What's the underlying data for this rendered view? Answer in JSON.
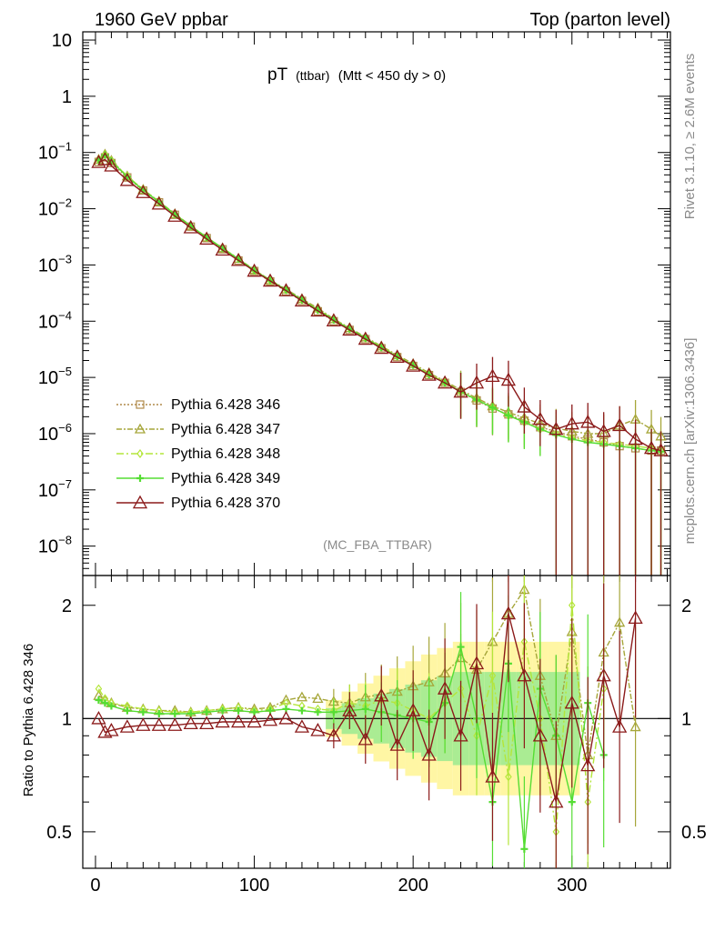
{
  "header": {
    "left": "1960 GeV ppbar",
    "right": "Top (parton level)"
  },
  "side_labels": {
    "top": "Rivet 3.1.10, ≥ 2.6M events",
    "bottom": "mcplots.cern.ch [arXiv:1306.3436]"
  },
  "chart_data": [
    {
      "type": "line",
      "panel": "main",
      "title": "pT (ttbar) (Mtt < 450 dy > 0)",
      "title_main": "pT",
      "title_sub": "(ttbar)",
      "title_rest": "(Mtt < 450 dy > 0)",
      "watermark": "(MC_FBA_TTBAR)",
      "y_scale": "log",
      "xlim": [
        -8,
        362
      ],
      "ylim": [
        3e-09,
        14
      ],
      "ytick_labels": [
        {
          "value": 10,
          "base": "10",
          "exp": ""
        },
        {
          "value": 1,
          "base": "1",
          "exp": ""
        },
        {
          "value": 0.1,
          "base": "10",
          "exp": "−1"
        },
        {
          "value": 0.01,
          "base": "10",
          "exp": "−2"
        },
        {
          "value": 0.001,
          "base": "10",
          "exp": "−3"
        },
        {
          "value": 0.0001,
          "base": "10",
          "exp": "−4"
        },
        {
          "value": 1e-05,
          "base": "10",
          "exp": "−5"
        },
        {
          "value": 1e-06,
          "base": "10",
          "exp": "−6"
        },
        {
          "value": 1e-07,
          "base": "10",
          "exp": "−7"
        },
        {
          "value": 1e-08,
          "base": "10",
          "exp": "−8"
        }
      ],
      "legend_position": "lower-left",
      "series": [
        {
          "name": "Pythia 6.428 346",
          "color": "#b08a4a",
          "marker": "square",
          "dash": "2,2",
          "x": [
            2,
            6,
            10,
            20,
            30,
            40,
            50,
            60,
            70,
            80,
            90,
            100,
            110,
            120,
            130,
            140,
            150,
            160,
            170,
            180,
            190,
            200,
            210,
            220,
            230,
            240,
            250,
            260,
            270,
            280,
            290,
            300,
            310,
            320,
            330,
            340,
            350,
            356
          ],
          "y": [
            0.068,
            0.082,
            0.065,
            0.036,
            0.021,
            0.013,
            0.0078,
            0.0048,
            0.003,
            0.0019,
            0.0012,
            0.00078,
            0.00051,
            0.00034,
            0.00023,
            0.00015,
            0.0001,
            7e-05,
            4.8e-05,
            3.3e-05,
            2.3e-05,
            1.6e-05,
            1.1e-05,
            8e-06,
            5.5e-06,
            3.9e-06,
            2.8e-06,
            2.2e-06,
            1.7e-06,
            1.3e-06,
            1.1e-06,
            9e-07,
            8e-07,
            7e-07,
            6e-07,
            5.5e-07,
            5e-07,
            5e-07
          ]
        },
        {
          "name": "Pythia 6.428 347",
          "color": "#a6a63a",
          "marker": "triangle",
          "dash": "6,2,2,2",
          "x": [
            2,
            6,
            10,
            20,
            30,
            40,
            50,
            60,
            70,
            80,
            90,
            100,
            110,
            120,
            130,
            140,
            150,
            160,
            170,
            180,
            190,
            200,
            210,
            220,
            230,
            240,
            250,
            260,
            270,
            280,
            290,
            300,
            310,
            320,
            330,
            340,
            350,
            356
          ],
          "y": [
            0.075,
            0.093,
            0.072,
            0.038,
            0.022,
            0.0135,
            0.0081,
            0.005,
            0.0031,
            0.002,
            0.0013,
            0.00082,
            0.00054,
            0.00037,
            0.00025,
            0.00017,
            0.00011,
            7.6e-05,
            5.2e-05,
            3.6e-05,
            2.5e-05,
            1.75e-05,
            1.2e-05,
            8.6e-06,
            6e-06,
            4.3e-06,
            3.1e-06,
            2.4e-06,
            1.9e-06,
            1.5e-06,
            1.25e-06,
            1.1e-06,
            1e-06,
            1e-06,
            1.4e-06,
            1.8e-06,
            1.2e-06,
            9e-07
          ]
        },
        {
          "name": "Pythia 6.428 348",
          "color": "#b4e63a",
          "marker": "diamond",
          "dash": "8,3,2,3",
          "x": [
            2,
            6,
            10,
            20,
            30,
            40,
            50,
            60,
            70,
            80,
            90,
            100,
            110,
            120,
            130,
            140,
            150,
            160,
            170,
            180,
            190,
            200,
            210,
            220,
            230,
            240,
            250,
            260,
            270,
            280,
            290,
            300,
            310,
            320,
            330,
            340,
            350,
            356
          ],
          "y": [
            0.074,
            0.091,
            0.071,
            0.038,
            0.022,
            0.0134,
            0.008,
            0.0049,
            0.0031,
            0.002,
            0.0013,
            0.0008,
            0.00053,
            0.00036,
            0.00024,
            0.00016,
            0.000108,
            7.4e-05,
            5e-05,
            3.5e-05,
            2.4e-05,
            1.7e-05,
            1.15e-05,
            8.2e-06,
            5.6e-06,
            4e-06,
            2.9e-06,
            2.1e-06,
            1.6e-06,
            1.2e-06,
            1e-06,
            8.5e-07,
            7.5e-07,
            7e-07,
            6.5e-07,
            6e-07,
            5.5e-07,
            5e-07
          ]
        },
        {
          "name": "Pythia 6.428 349",
          "color": "#55dd33",
          "marker": "cross",
          "dash": "",
          "x": [
            2,
            6,
            10,
            20,
            30,
            40,
            50,
            60,
            70,
            80,
            90,
            100,
            110,
            120,
            130,
            140,
            150,
            160,
            170,
            180,
            190,
            200,
            210,
            220,
            230,
            240,
            250,
            260,
            270,
            280,
            290,
            300,
            310,
            320,
            330,
            340,
            350,
            356
          ],
          "y": [
            0.073,
            0.09,
            0.07,
            0.037,
            0.0215,
            0.0132,
            0.0079,
            0.0049,
            0.0031,
            0.00198,
            0.00128,
            0.0008,
            0.00053,
            0.00036,
            0.00024,
            0.000158,
            0.000106,
            7.3e-05,
            5e-05,
            3.4e-05,
            2.35e-05,
            1.65e-05,
            1.12e-05,
            8e-06,
            5.6e-06,
            4e-06,
            2.9e-06,
            2.1e-06,
            1.6e-06,
            1.2e-06,
            9.5e-07,
            8e-07,
            7e-07,
            6.5e-07,
            6e-07,
            5.5e-07,
            5e-07,
            4.8e-07
          ]
        },
        {
          "name": "Pythia 6.428 370",
          "color": "#8b1a1a",
          "marker": "triangle-large",
          "dash": "",
          "x": [
            2,
            6,
            10,
            20,
            30,
            40,
            50,
            60,
            70,
            80,
            90,
            100,
            110,
            120,
            130,
            140,
            150,
            160,
            170,
            180,
            190,
            200,
            210,
            220,
            230,
            240,
            250,
            260,
            270,
            280,
            290,
            300,
            310,
            320,
            330,
            340,
            350,
            356
          ],
          "y": [
            0.067,
            0.075,
            0.058,
            0.032,
            0.0195,
            0.0122,
            0.0074,
            0.0046,
            0.0029,
            0.00185,
            0.00121,
            0.00078,
            0.00052,
            0.00035,
            0.00023,
            0.000153,
            0.000102,
            7e-05,
            4.8e-05,
            3.3e-05,
            2.3e-05,
            1.6e-05,
            1.1e-05,
            8e-06,
            5.5e-06,
            8e-06,
            1.05e-05,
            9e-06,
            3e-06,
            1.8e-06,
            1.2e-06,
            1.5e-06,
            1.6e-06,
            1.1e-06,
            1.4e-06,
            8e-07,
            5.5e-07,
            5e-07
          ]
        }
      ]
    },
    {
      "type": "line",
      "panel": "ratio",
      "ylabel": "Ratio to Pythia 6.428 346",
      "y_scale": "log",
      "xlim": [
        -8,
        362
      ],
      "ylim": [
        0.4,
        2.4
      ],
      "xtick_labels": [
        "0",
        "100",
        "200",
        "300"
      ],
      "xtick_values": [
        0,
        100,
        200,
        300
      ],
      "ytick_labels": [
        "2",
        "1",
        "0.5"
      ],
      "ytick_values": [
        2,
        1,
        0.5
      ],
      "reference_line": 1,
      "series": [
        {
          "name": "Pythia 6.428 346",
          "color": "#b08a4a",
          "x": [
            2,
            6,
            10,
            20,
            30,
            40,
            50,
            60,
            70,
            80,
            90,
            100,
            110,
            120,
            130,
            140,
            150,
            160,
            170,
            180,
            190,
            200,
            210,
            220,
            230,
            240,
            250,
            260,
            270,
            280,
            290,
            300
          ],
          "y": [
            1,
            1,
            1,
            1,
            1,
            1,
            1,
            1,
            1,
            1,
            1,
            1,
            1,
            1,
            1,
            1,
            1,
            1,
            1,
            1,
            1,
            1,
            1,
            1,
            1,
            1,
            1,
            1,
            1,
            1,
            1,
            1
          ]
        },
        {
          "name": "Pythia 6.428 347",
          "color": "#a6a63a",
          "x": [
            2,
            6,
            10,
            20,
            30,
            40,
            50,
            60,
            70,
            80,
            90,
            100,
            110,
            120,
            130,
            140,
            150,
            160,
            170,
            180,
            190,
            200,
            210,
            220,
            230,
            240,
            250,
            260,
            270,
            280,
            290,
            300,
            310,
            320,
            330,
            340
          ],
          "y": [
            1.15,
            1.12,
            1.1,
            1.07,
            1.06,
            1.05,
            1.05,
            1.04,
            1.05,
            1.06,
            1.07,
            1.06,
            1.07,
            1.12,
            1.14,
            1.13,
            1.11,
            1.1,
            1.14,
            1.16,
            1.18,
            1.22,
            1.25,
            1.32,
            1.45,
            1.35,
            1.6,
            1.9,
            2.2,
            1.3,
            0.9,
            1.7,
            0.8,
            1.5,
            1.8,
            0.95
          ]
        },
        {
          "name": "Pythia 6.428 348",
          "color": "#b4e63a",
          "x": [
            2,
            6,
            10,
            20,
            30,
            40,
            50,
            60,
            70,
            80,
            90,
            100,
            110,
            120,
            130,
            140,
            150,
            160,
            170,
            180,
            190,
            200,
            210,
            220,
            230,
            240,
            250,
            260,
            270,
            280,
            290,
            300,
            310,
            320
          ],
          "y": [
            1.2,
            1.13,
            1.1,
            1.08,
            1.06,
            1.05,
            1.04,
            1.04,
            1.05,
            1.06,
            1.07,
            1.05,
            1.06,
            1.1,
            1.08,
            1.06,
            1.05,
            1.1,
            1.08,
            1.12,
            1.1,
            1.05,
            1.0,
            1.1,
            1.2,
            0.9,
            1.3,
            0.7,
            1.6,
            1.0,
            0.5,
            2.0,
            0.6,
            1.2
          ]
        },
        {
          "name": "Pythia 6.428 349",
          "color": "#55dd33",
          "x": [
            2,
            6,
            10,
            20,
            30,
            40,
            50,
            60,
            70,
            80,
            90,
            100,
            110,
            120,
            130,
            140,
            150,
            160,
            170,
            180,
            190,
            200,
            210,
            220,
            230,
            240,
            250,
            260,
            270,
            280,
            290,
            300,
            310,
            320
          ],
          "y": [
            1.12,
            1.1,
            1.08,
            1.05,
            1.04,
            1.03,
            1.03,
            1.03,
            1.04,
            1.05,
            1.05,
            1.04,
            1.05,
            1.06,
            1.05,
            1.04,
            1.04,
            1.05,
            1.06,
            1.04,
            1.02,
            1.0,
            0.98,
            1.1,
            1.55,
            1.0,
            0.6,
            1.4,
            0.45,
            1.2,
            0.9,
            0.6,
            1.1,
            0.8
          ]
        },
        {
          "name": "Pythia 6.428 370",
          "color": "#8b1a1a",
          "x": [
            2,
            6,
            10,
            20,
            30,
            40,
            50,
            60,
            70,
            80,
            90,
            100,
            110,
            120,
            130,
            140,
            150,
            160,
            170,
            180,
            190,
            200,
            210,
            220,
            230,
            240,
            250,
            260,
            270,
            280,
            290,
            300,
            310,
            320,
            330,
            340
          ],
          "y": [
            1.0,
            0.92,
            0.93,
            0.95,
            0.96,
            0.96,
            0.96,
            0.97,
            0.97,
            0.98,
            0.98,
            0.98,
            0.99,
            1.0,
            0.95,
            0.93,
            0.9,
            1.05,
            0.88,
            1.15,
            0.85,
            1.05,
            0.8,
            1.2,
            0.9,
            1.4,
            0.7,
            1.9,
            1.3,
            0.9,
            0.6,
            1.1,
            0.75,
            1.3,
            0.95,
            1.85
          ]
        }
      ]
    }
  ]
}
